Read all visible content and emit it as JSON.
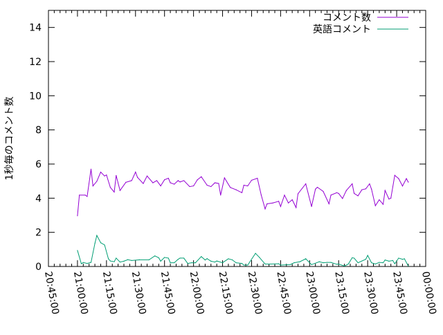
{
  "chart_data": {
    "type": "line",
    "title": "",
    "xlabel": "",
    "ylabel": "1秒毎のコメント数",
    "xlim": [
      "20:45:00",
      "00:00:00"
    ],
    "ylim": [
      0,
      15
    ],
    "x_ticks": [
      "20:45:00",
      "21:00:00",
      "21:15:00",
      "21:30:00",
      "21:45:00",
      "22:00:00",
      "22:15:00",
      "22:30:00",
      "22:45:00",
      "23:00:00",
      "23:15:00",
      "23:30:00",
      "23:45:00",
      "00:00:00"
    ],
    "y_ticks": [
      "0",
      "2",
      "4",
      "6",
      "8",
      "10",
      "12",
      "14"
    ],
    "grid": false,
    "legend_position": "top-right",
    "series": [
      {
        "name": "コメント数",
        "color": "#9400d3",
        "x": [
          "21:00",
          "21:01",
          "21:04",
          "21:05",
          "21:07",
          "21:08",
          "21:10",
          "21:12",
          "21:14",
          "21:15",
          "21:17",
          "21:19",
          "21:20",
          "21:22",
          "21:25",
          "21:28",
          "21:30",
          "21:31",
          "21:34",
          "21:36",
          "21:39",
          "21:41",
          "21:43",
          "21:45",
          "21:47",
          "21:48",
          "21:50",
          "21:52",
          "21:53",
          "21:55",
          "21:58",
          "22:00",
          "22:02",
          "22:04",
          "22:07",
          "22:09",
          "22:11",
          "22:13",
          "22:14",
          "22:16",
          "22:19",
          "22:22",
          "22:25",
          "22:26",
          "22:28",
          "22:30",
          "22:33",
          "22:35",
          "22:37",
          "22:38",
          "22:41",
          "22:44",
          "22:45",
          "22:47",
          "22:49",
          "22:51",
          "22:53",
          "22:54",
          "22:58",
          "23:01",
          "23:03",
          "23:04",
          "23:07",
          "23:10",
          "23:11",
          "23:14",
          "23:15",
          "23:17",
          "23:19",
          "23:22",
          "23:23",
          "23:25",
          "23:27",
          "23:29",
          "23:31",
          "23:32",
          "23:34",
          "23:36",
          "23:38",
          "23:39",
          "23:41",
          "23:42",
          "23:44",
          "23:46",
          "23:48",
          "23:50",
          "23:51"
        ],
        "values": [
          2.97,
          4.18,
          4.18,
          4.1,
          5.7,
          4.72,
          4.99,
          5.53,
          5.3,
          5.36,
          4.63,
          4.36,
          5.33,
          4.45,
          4.93,
          5.03,
          5.53,
          5.22,
          4.86,
          5.3,
          4.9,
          5.03,
          4.72,
          5.08,
          5.17,
          4.9,
          4.82,
          5.03,
          4.95,
          5.03,
          4.68,
          4.72,
          5.08,
          5.26,
          4.76,
          4.68,
          4.9,
          4.86,
          4.18,
          5.19,
          4.63,
          4.49,
          4.32,
          4.76,
          4.72,
          5.05,
          5.17,
          4.18,
          3.37,
          3.67,
          3.72,
          3.82,
          3.51,
          4.18,
          3.72,
          3.91,
          3.45,
          4.26,
          4.84,
          3.51,
          4.53,
          4.64,
          4.4,
          3.67,
          4.18,
          4.32,
          4.28,
          3.98,
          4.45,
          4.84,
          4.28,
          4.14,
          4.49,
          4.55,
          4.84,
          4.53,
          3.56,
          3.91,
          3.64,
          4.45,
          3.95,
          4.0,
          5.34,
          5.15,
          4.71,
          5.15,
          4.94
        ]
      },
      {
        "name": "英語コメント",
        "color": "#009e73",
        "x": [
          "21:00",
          "21:02",
          "21:03",
          "21:05",
          "21:07",
          "21:09",
          "21:10",
          "21:12",
          "21:14",
          "21:16",
          "21:17",
          "21:19",
          "21:20",
          "21:22",
          "21:24",
          "21:26",
          "21:28",
          "21:32",
          "21:37",
          "21:40",
          "21:42",
          "21:43",
          "21:45",
          "21:47",
          "21:48",
          "21:50",
          "21:52",
          "21:53",
          "21:55",
          "21:57",
          "21:59",
          "22:01",
          "22:04",
          "22:06",
          "22:07",
          "22:09",
          "22:11",
          "22:12",
          "22:15",
          "22:18",
          "22:20",
          "22:22",
          "22:25",
          "22:26",
          "22:28",
          "22:32",
          "22:34",
          "22:37",
          "22:40",
          "22:44",
          "22:45",
          "22:50",
          "22:52",
          "22:55",
          "22:58",
          "23:01",
          "23:05",
          "23:07",
          "23:09",
          "23:11",
          "23:14",
          "23:15",
          "23:18",
          "23:20",
          "23:22",
          "23:23",
          "23:25",
          "23:29",
          "23:30",
          "23:32",
          "23:34",
          "23:36",
          "23:38",
          "23:39",
          "23:41",
          "23:43",
          "23:44",
          "23:46",
          "23:48",
          "23:49",
          "23:51"
        ],
        "values": [
          0.94,
          0.16,
          0.23,
          0.18,
          0.24,
          1.35,
          1.82,
          1.39,
          1.26,
          0.45,
          0.32,
          0.28,
          0.49,
          0.26,
          0.31,
          0.4,
          0.35,
          0.39,
          0.39,
          0.62,
          0.51,
          0.31,
          0.53,
          0.49,
          0.22,
          0.22,
          0.42,
          0.49,
          0.49,
          0.18,
          0.22,
          0.22,
          0.58,
          0.38,
          0.46,
          0.31,
          0.26,
          0.32,
          0.22,
          0.45,
          0.39,
          0.22,
          0.18,
          0.08,
          0.08,
          0.77,
          0.54,
          0.14,
          0.14,
          0.16,
          0.08,
          0.11,
          0.22,
          0.28,
          0.45,
          0.11,
          0.28,
          0.22,
          0.24,
          0.24,
          0.13,
          0.14,
          0.03,
          0.14,
          0.51,
          0.49,
          0.22,
          0.42,
          0.65,
          0.22,
          0.14,
          0.24,
          0.22,
          0.38,
          0.31,
          0.35,
          0.16,
          0.49,
          0.42,
          0.45,
          0.03
        ]
      }
    ]
  }
}
